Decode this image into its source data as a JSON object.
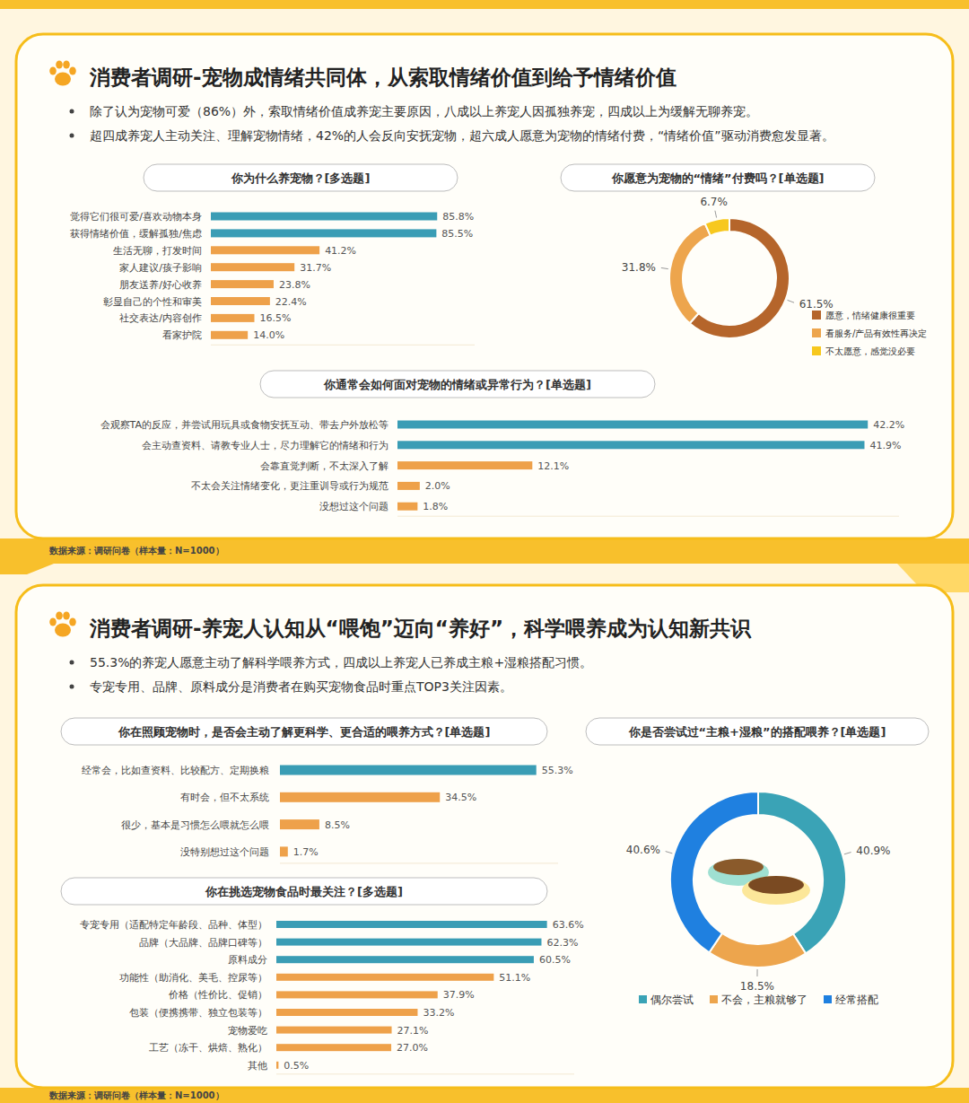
{
  "panels": [
    {
      "title": "消费者调研-宠物成情绪共同体，从索取情绪价值到给予情绪价值",
      "bullets": [
        "除了认为宠物可爱（86%）外，索取情绪价值成养宠主要原因，八成以上养宠人因孤独养宠，四成以上为缓解无聊养宠。",
        "超四成养宠人主动关注、理解宠物情绪，42%的人会反向安抚宠物，超六成人愿意为宠物的情绪付费，“情绪价值”驱动消费愈发显著。"
      ],
      "source": "数据来源：调研问卷（样本量：N=1000）"
    },
    {
      "title": "消费者调研-养宠人认知从“喂饱”迈向“养好”，科学喂养成为认知新共识",
      "bullets": [
        "55.3%的养宠人愿意主动了解科学喂养方式，四成以上养宠人已养成主粮+湿粮搭配习惯。",
        "专宠专用、品牌、原料成分是消费者在购买宠物食品时重点TOP3关注因素。"
      ],
      "source": "数据来源：调研问卷（样本量：N=1000）"
    }
  ],
  "chart_data": [
    {
      "type": "bar",
      "orientation": "horizontal",
      "title": "你为什么养宠物？[多选题]",
      "categories": [
        "觉得它们很可爱/喜欢动物本身",
        "获得情绪价值，缓解孤独/焦虑",
        "生活无聊，打发时间",
        "家人建议/孩子影响",
        "朋友送养/好心收养",
        "彰显自己的个性和审美",
        "社交表达/内容创作",
        "看家护院"
      ],
      "values": [
        85.8,
        85.5,
        41.2,
        31.7,
        23.8,
        22.4,
        16.5,
        14.0
      ],
      "value_labels": [
        "85.8%",
        "85.5%",
        "41.2%",
        "31.7%",
        "23.8%",
        "22.4%",
        "16.5%",
        "14.0%"
      ],
      "colors": [
        "#3a9db5",
        "#3a9db5",
        "#eea14a",
        "#eea14a",
        "#eea14a",
        "#eea14a",
        "#eea14a",
        "#eea14a"
      ],
      "xlim": [
        0,
        100
      ],
      "tick_labels": false,
      "data_labels": true
    },
    {
      "type": "donut",
      "title": "你愿意为宠物的“情绪”付费吗？[单选题]",
      "categories": [
        "愿意，情绪健康很重要",
        "看服务/产品有效性再决定",
        "不太愿意，感觉没必要"
      ],
      "values": [
        61.5,
        31.8,
        6.7
      ],
      "value_labels": [
        "61.5%",
        "31.8%",
        "6.7%"
      ],
      "colors": [
        "#b5652b",
        "#eda54d",
        "#f7c81e"
      ],
      "legend": "right",
      "data_labels": true
    },
    {
      "type": "bar",
      "orientation": "horizontal",
      "title": "你通常会如何面对宠物的情绪或异常行为？[单选题]",
      "categories": [
        "会观察TA的反应，并尝试用玩具或食物安抚互动、带去户外放松等",
        "会主动查资料、请教专业人士，尽力理解它的情绪和行为",
        "会靠直觉判断，不太深入了解",
        "不太会关注情绪变化，更注重训导或行为规范",
        "没想过这个问题"
      ],
      "values": [
        42.2,
        41.9,
        12.1,
        2.0,
        1.8
      ],
      "value_labels": [
        "42.2%",
        "41.9%",
        "12.1%",
        "2.0%",
        "1.8%"
      ],
      "colors": [
        "#3a9db5",
        "#3a9db5",
        "#eea14a",
        "#eea14a",
        "#eea14a"
      ],
      "xlim": [
        0,
        45
      ],
      "tick_labels": false,
      "data_labels": true
    },
    {
      "type": "bar",
      "orientation": "horizontal",
      "title": "你在照顾宠物时，是否会主动了解更科学、更合适的喂养方式？[单选题]",
      "categories": [
        "经常会，比如查资料、比较配方、定期换粮",
        "有时会，但不太系统",
        "很少，基本是习惯怎么喂就怎么喂",
        "没特别想过这个问题"
      ],
      "values": [
        55.3,
        34.5,
        8.5,
        1.7
      ],
      "value_labels": [
        "55.3%",
        "34.5%",
        "8.5%",
        "1.7%"
      ],
      "colors": [
        "#3a9db5",
        "#eea14a",
        "#eea14a",
        "#eea14a"
      ],
      "xlim": [
        0,
        60
      ],
      "tick_labels": false,
      "data_labels": true
    },
    {
      "type": "bar",
      "orientation": "horizontal",
      "title": "你在挑选宠物食品时最关注？[多选题]",
      "categories": [
        "专宠专用（适配特定年龄段、品种、体型）",
        "品牌（大品牌、品牌口碑等）",
        "原料成分",
        "功能性（助消化、美毛、控尿等）",
        "价格（性价比、促销）",
        "包装（便携携带、独立包装等）",
        "宠物爱吃",
        "工艺（冻干、烘焙、熟化）",
        "其他"
      ],
      "values": [
        63.6,
        62.3,
        60.5,
        51.1,
        37.9,
        33.2,
        27.1,
        27.0,
        0.5
      ],
      "value_labels": [
        "63.6%",
        "62.3%",
        "60.5%",
        "51.1%",
        "37.9%",
        "33.2%",
        "27.1%",
        "27.0%",
        "0.5%"
      ],
      "colors": [
        "#3a9db5",
        "#3a9db5",
        "#3a9db5",
        "#eea14a",
        "#eea14a",
        "#eea14a",
        "#eea14a",
        "#eea14a",
        "#eea14a"
      ],
      "xlim": [
        0,
        70
      ],
      "tick_labels": false,
      "data_labels": true
    },
    {
      "type": "donut",
      "title": "你是否尝试过“主粮+湿粮”的搭配喂养？[单选题]",
      "categories": [
        "偶尔尝试",
        "不会，主粮就够了",
        "经常搭配"
      ],
      "values": [
        40.9,
        18.5,
        40.6
      ],
      "value_labels": [
        "40.9%",
        "18.5%",
        "40.6%"
      ],
      "colors": [
        "#3aa3b6",
        "#eda54d",
        "#1f80e0"
      ],
      "legend": "bottom",
      "data_labels": true
    }
  ]
}
